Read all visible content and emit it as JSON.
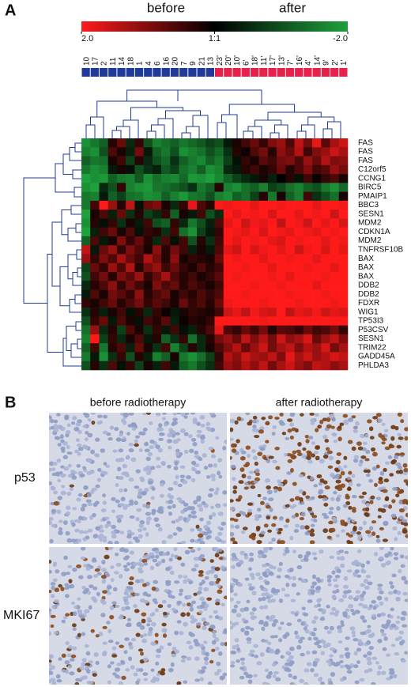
{
  "panel_a": {
    "label": "A",
    "title_left": "before",
    "title_right": "after",
    "color_scale": {
      "ticks": [
        {
          "value": 2,
          "label": "2.0"
        },
        {
          "value": 0,
          "label": "1:1"
        },
        {
          "value": -2,
          "label": "-2.0"
        }
      ],
      "colors": [
        "#ff1a1a",
        "#000000",
        "#1fa03c"
      ]
    },
    "columns": [
      {
        "label": "10",
        "color": "#1f3a99"
      },
      {
        "label": "17",
        "color": "#1f3a99"
      },
      {
        "label": "2",
        "color": "#1f3a99"
      },
      {
        "label": "11",
        "color": "#1f3a99"
      },
      {
        "label": "14",
        "color": "#1f3a99"
      },
      {
        "label": "18",
        "color": "#1f3a99"
      },
      {
        "label": "1",
        "color": "#1f3a99"
      },
      {
        "label": "4",
        "color": "#1f3a99"
      },
      {
        "label": "6",
        "color": "#1f3a99"
      },
      {
        "label": "16",
        "color": "#1f3a99"
      },
      {
        "label": "20",
        "color": "#1f3a99"
      },
      {
        "label": "7",
        "color": "#1f3a99"
      },
      {
        "label": "9",
        "color": "#1f3a99"
      },
      {
        "label": "21",
        "color": "#1f3a99"
      },
      {
        "label": "13",
        "color": "#1f3a99"
      },
      {
        "label": "23'",
        "color": "#e8204a"
      },
      {
        "label": "20'",
        "color": "#e8204a"
      },
      {
        "label": "10'",
        "color": "#e8204a"
      },
      {
        "label": "6'",
        "color": "#e8204a"
      },
      {
        "label": "18'",
        "color": "#e8204a"
      },
      {
        "label": "11'",
        "color": "#e8204a"
      },
      {
        "label": "17'",
        "color": "#e8204a"
      },
      {
        "label": "13'",
        "color": "#e8204a"
      },
      {
        "label": "7'",
        "color": "#e8204a"
      },
      {
        "label": "16'",
        "color": "#e8204a"
      },
      {
        "label": "4'",
        "color": "#e8204a"
      },
      {
        "label": "14'",
        "color": "#e8204a"
      },
      {
        "label": "9'",
        "color": "#e8204a"
      },
      {
        "label": "2'",
        "color": "#e8204a"
      },
      {
        "label": "1'",
        "color": "#e8204a"
      }
    ],
    "rows": [
      "FAS",
      "FAS",
      "FAS",
      "C12orf5",
      "CCNG1",
      "BIRC5",
      "PMAIP1",
      "BBC3",
      "SESN1",
      "MDM2",
      "CDKN1A",
      "MDM2",
      "TNFRSF10B",
      "BAX",
      "BAX",
      "BAX",
      "DDB2",
      "DDB2",
      "FDXR",
      "WIG1",
      "TP53I3",
      "P53CSV",
      "SESN1",
      "TRIM22",
      "GADD45A",
      "PHLDA3"
    ],
    "values": [
      [
        -1.8,
        -1.5,
        -1.2,
        0.3,
        0.8,
        -0.5,
        0.4,
        -1.0,
        -1.6,
        -1.4,
        -1.2,
        -1.5,
        -1.3,
        -1.1,
        -0.8,
        -1.0,
        -0.3,
        0.2,
        0.5,
        0.8,
        0.4,
        1.0,
        1.2,
        0.6,
        1.5,
        0.9,
        1.8,
        0.7,
        1.3,
        1.6
      ],
      [
        -1.6,
        -1.8,
        -1.0,
        0.6,
        0.2,
        -0.4,
        0.9,
        -0.3,
        -1.2,
        -1.5,
        -1.0,
        -1.8,
        -1.6,
        -1.4,
        -1.0,
        -1.3,
        -0.6,
        0.3,
        0.1,
        0.6,
        0.9,
        0.3,
        1.1,
        0.8,
        1.4,
        0.5,
        1.0,
        1.2,
        1.6,
        1.3
      ],
      [
        -1.2,
        -1.5,
        -1.4,
        0.2,
        0.5,
        -0.8,
        0.3,
        -0.5,
        -1.0,
        -1.3,
        -0.6,
        -1.2,
        -1.5,
        -1.7,
        -1.2,
        -1.5,
        -0.8,
        -0.2,
        0.4,
        0.2,
        0.7,
        0.5,
        0.9,
        1.0,
        0.6,
        1.2,
        0.8,
        1.4,
        1.0,
        1.1
      ],
      [
        -1.5,
        -1.8,
        -1.6,
        -0.3,
        0.2,
        -0.2,
        -1.0,
        -0.6,
        -0.4,
        -1.1,
        -0.8,
        -1.4,
        -1.6,
        -1.2,
        -1.8,
        -1.6,
        -0.5,
        -0.3,
        0.3,
        0.5,
        0.2,
        0.4,
        0.8,
        0.3,
        0.6,
        1.0,
        0.5,
        0.7,
        1.2,
        0.9
      ],
      [
        -2.0,
        -1.8,
        -1.9,
        -1.2,
        -1.5,
        -1.6,
        -1.1,
        -1.8,
        -1.4,
        -1.6,
        -1.7,
        -1.3,
        -1.9,
        -1.8,
        -2.0,
        -1.7,
        -1.2,
        -0.8,
        -0.5,
        -0.3,
        0.2,
        -0.4,
        0.0,
        0.3,
        -0.2,
        0.5,
        0.1,
        0.4,
        0.6,
        0.2
      ],
      [
        -1.8,
        -2.0,
        -0.5,
        -1.0,
        0.4,
        -1.6,
        -1.8,
        -1.9,
        -1.5,
        -1.4,
        -1.2,
        -1.0,
        -0.6,
        -1.5,
        -1.2,
        0.3,
        -1.6,
        -1.8,
        -1.4,
        -1.2,
        -1.6,
        -0.8,
        -1.0,
        -1.4,
        -1.6,
        -1.2,
        -1.0,
        -1.5,
        -1.8,
        -1.3
      ],
      [
        -1.5,
        -1.6,
        -0.3,
        -1.2,
        -0.8,
        -1.4,
        -1.5,
        -1.8,
        -1.7,
        -1.2,
        -1.6,
        -1.9,
        -1.5,
        -1.4,
        -1.0,
        -1.6,
        -1.8,
        -1.2,
        -1.4,
        -0.8,
        0.3,
        -1.5,
        0.2,
        -1.2,
        -1.6,
        0.5,
        -0.6,
        -1.0,
        -1.4,
        0.2
      ],
      [
        -1.5,
        0.5,
        2.0,
        1.2,
        0.3,
        1.5,
        -0.2,
        0.8,
        1.0,
        0.2,
        -0.5,
        0.4,
        1.8,
        0.6,
        0.3,
        2.0,
        1.9,
        2.0,
        2.0,
        1.8,
        2.0,
        2.0,
        1.9,
        2.0,
        2.0,
        2.0,
        1.8,
        2.0,
        2.0,
        1.9
      ],
      [
        -2.0,
        0.2,
        0.6,
        -0.4,
        0.8,
        -0.6,
        0.3,
        -0.8,
        -0.5,
        0.4,
        -1.2,
        0.2,
        -0.3,
        0.5,
        -1.0,
        -0.5,
        2.0,
        1.8,
        2.0,
        1.9,
        2.0,
        1.7,
        2.0,
        2.0,
        1.8,
        2.0,
        1.9,
        2.0,
        1.6,
        2.0
      ],
      [
        -1.8,
        0.3,
        -0.2,
        0.4,
        -0.6,
        0.2,
        -0.3,
        0.5,
        -1.0,
        -1.2,
        0.4,
        -0.5,
        -1.5,
        -1.0,
        -0.4,
        0.6,
        1.8,
        2.0,
        1.6,
        1.9,
        1.8,
        2.0,
        1.5,
        2.0,
        1.9,
        1.6,
        2.0,
        1.8,
        2.0,
        1.7
      ],
      [
        -2.0,
        -0.4,
        0.5,
        0.8,
        0.2,
        0.6,
        -0.2,
        0.4,
        0.3,
        -0.6,
        0.5,
        -1.4,
        -1.8,
        -0.8,
        -0.3,
        0.4,
        2.0,
        1.9,
        1.8,
        2.0,
        1.7,
        2.0,
        1.9,
        1.8,
        2.0,
        1.9,
        1.8,
        2.0,
        1.9,
        2.0
      ],
      [
        -1.2,
        0.6,
        -0.3,
        0.2,
        1.0,
        0.4,
        0.8,
        0.3,
        -0.5,
        0.6,
        -0.2,
        0.5,
        -1.0,
        0.3,
        -0.6,
        0.5,
        2.0,
        1.8,
        2.0,
        1.9,
        2.0,
        1.8,
        1.7,
        2.0,
        1.9,
        2.0,
        2.0,
        1.8,
        2.0,
        1.9
      ],
      [
        1.5,
        -0.3,
        0.8,
        1.2,
        0.4,
        1.0,
        0.6,
        0.2,
        1.1,
        0.3,
        0.9,
        0.5,
        -0.4,
        0.2,
        -0.3,
        0.6,
        1.8,
        1.6,
        2.0,
        1.7,
        1.9,
        2.0,
        1.8,
        2.0,
        1.6,
        1.9,
        2.0,
        1.7,
        2.0,
        1.8
      ],
      [
        1.2,
        0.4,
        1.0,
        0.6,
        1.3,
        0.8,
        0.5,
        1.4,
        0.9,
        0.3,
        1.1,
        0.2,
        0.4,
        0.3,
        0.2,
        0.8,
        2.0,
        1.9,
        2.0,
        2.0,
        1.8,
        2.0,
        2.0,
        1.9,
        2.0,
        2.0,
        1.8,
        2.0,
        2.0,
        2.0
      ],
      [
        -0.8,
        0.8,
        0.4,
        1.2,
        0.6,
        1.4,
        0.3,
        0.9,
        1.2,
        0.5,
        0.8,
        0.4,
        0.2,
        0.6,
        0.3,
        0.5,
        2.0,
        2.0,
        1.9,
        2.0,
        2.0,
        1.8,
        2.0,
        2.0,
        2.0,
        1.9,
        2.0,
        2.0,
        1.8,
        2.0
      ],
      [
        -1.0,
        0.5,
        0.9,
        0.3,
        1.0,
        0.7,
        1.2,
        0.4,
        0.8,
        1.3,
        0.6,
        0.3,
        0.5,
        0.2,
        0.4,
        0.7,
        2.0,
        1.9,
        2.0,
        2.0,
        2.0,
        1.9,
        2.0,
        1.8,
        2.0,
        2.0,
        2.0,
        1.9,
        2.0,
        2.0
      ],
      [
        -0.5,
        0.3,
        0.6,
        1.1,
        0.4,
        0.9,
        0.5,
        0.2,
        1.0,
        0.6,
        0.8,
        0.3,
        0.6,
        0.4,
        0.2,
        0.5,
        2.0,
        2.0,
        2.0,
        1.9,
        2.0,
        2.0,
        1.9,
        2.0,
        2.0,
        2.0,
        1.8,
        2.0,
        2.0,
        2.0
      ],
      [
        -0.3,
        0.6,
        0.2,
        0.9,
        0.7,
        0.4,
        1.1,
        0.3,
        0.6,
        0.8,
        0.2,
        0.5,
        0.3,
        0.6,
        0.4,
        0.6,
        2.0,
        2.0,
        1.9,
        2.0,
        2.0,
        2.0,
        2.0,
        1.9,
        2.0,
        2.0,
        2.0,
        1.9,
        2.0,
        2.0
      ],
      [
        0.4,
        0.2,
        0.5,
        0.8,
        0.3,
        0.6,
        0.9,
        0.4,
        0.7,
        0.5,
        0.2,
        0.8,
        0.4,
        0.6,
        0.3,
        0.8,
        1.9,
        2.0,
        2.0,
        2.0,
        1.9,
        2.0,
        2.0,
        2.0,
        1.9,
        2.0,
        2.0,
        2.0,
        1.9,
        2.0
      ],
      [
        -0.6,
        0.3,
        -0.4,
        0.2,
        0.5,
        -0.2,
        0.3,
        -0.5,
        0.4,
        0.1,
        -0.3,
        0.2,
        0.4,
        0.3,
        0.2,
        0.5,
        1.6,
        1.8,
        1.5,
        1.9,
        1.7,
        1.6,
        2.0,
        1.5,
        1.8,
        1.7,
        1.9,
        1.6,
        1.8,
        1.7
      ],
      [
        -1.0,
        0.4,
        0.8,
        -0.3,
        0.6,
        0.2,
        -0.2,
        0.5,
        0.3,
        0.7,
        -0.4,
        0.1,
        0.3,
        0.2,
        0.4,
        2.0,
        2.0,
        2.0,
        2.0,
        2.0,
        1.9,
        2.0,
        2.0,
        2.0,
        2.0,
        2.0,
        2.0,
        2.0,
        2.0,
        2.0
      ],
      [
        -1.4,
        1.2,
        -0.5,
        0.3,
        -0.8,
        0.6,
        0.2,
        -0.6,
        0.4,
        -0.3,
        0.5,
        -0.2,
        -0.4,
        0.3,
        0.6,
        1.8,
        0.6,
        0.4,
        0.8,
        0.5,
        0.9,
        0.3,
        0.7,
        0.6,
        0.4,
        0.8,
        0.5,
        0.6,
        0.9,
        0.4
      ],
      [
        -1.6,
        2.0,
        -0.8,
        0.4,
        -0.5,
        0.2,
        0.6,
        -0.3,
        0.3,
        -1.2,
        -0.6,
        0.4,
        -1.4,
        -0.5,
        0.3,
        0.9,
        1.2,
        0.8,
        1.5,
        1.0,
        1.4,
        0.9,
        1.6,
        1.1,
        1.3,
        1.7,
        0.8,
        1.2,
        1.5,
        1.0
      ],
      [
        -1.2,
        0.5,
        -1.5,
        0.3,
        0.6,
        -0.4,
        0.8,
        0.2,
        -0.6,
        0.5,
        -1.6,
        -0.8,
        0.3,
        -0.5,
        0.2,
        0.6,
        1.0,
        1.4,
        0.8,
        1.2,
        1.6,
        0.9,
        1.3,
        1.5,
        1.0,
        1.4,
        1.2,
        1.7,
        0.9,
        1.3
      ],
      [
        -1.5,
        -0.3,
        -1.8,
        -0.6,
        0.4,
        -1.0,
        0.3,
        -0.4,
        -1.6,
        -1.2,
        0.2,
        -1.5,
        -1.8,
        -1.4,
        -0.8,
        0.4,
        1.4,
        1.1,
        1.6,
        1.3,
        1.2,
        1.5,
        1.0,
        1.8,
        1.3,
        1.6,
        1.2,
        1.4,
        1.7,
        1.5
      ],
      [
        -1.0,
        0.3,
        -0.6,
        0.6,
        -0.2,
        0.4,
        -0.8,
        0.2,
        -0.4,
        0.5,
        -0.3,
        -1.2,
        -1.5,
        -1.0,
        -0.6,
        0.5,
        1.2,
        1.0,
        1.4,
        1.1,
        1.5,
        0.9,
        1.3,
        1.6,
        1.2,
        1.0,
        1.5,
        1.4,
        1.1,
        1.3
      ]
    ]
  },
  "panel_b": {
    "label": "B",
    "columns": [
      "before radiotherapy",
      "after radiotherapy"
    ],
    "rows": [
      "p53",
      "MKI67"
    ]
  }
}
